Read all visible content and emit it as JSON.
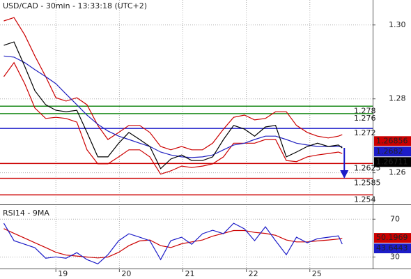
{
  "chart_data": {
    "type": "line",
    "title": "USD/CAD - 30min - 13:33:18 (UTC+2)",
    "x": [
      -0.82,
      -0.66,
      -0.49,
      -0.33,
      -0.16,
      0,
      0.16,
      0.33,
      0.49,
      0.66,
      0.82,
      0.99,
      1.15,
      1.32,
      1.48,
      1.65,
      1.81,
      1.98,
      2.14,
      2.31,
      2.47,
      2.64,
      2.8,
      2.97,
      3.13,
      3.3,
      3.46,
      3.63,
      3.79,
      3.96,
      4.12,
      4.29,
      4.45,
      4.51
    ],
    "xlim": [
      -0.88,
      4.99
    ],
    "xticks": [
      {
        "value": 0,
        "label": "19"
      },
      {
        "value": 1,
        "label": "20"
      },
      {
        "value": 2,
        "label": "21"
      },
      {
        "value": 3,
        "label": "22"
      },
      {
        "value": 4,
        "label": "25"
      }
    ],
    "ylim": [
      1.252,
      1.306
    ],
    "yticks": [
      1.26,
      1.28,
      {
        "value": 1.3,
        "label": "1.30"
      }
    ],
    "grid": true,
    "series": [
      {
        "color": "#cc0000",
        "values": [
          1.3011,
          1.302,
          1.2973,
          1.2916,
          1.286,
          1.2803,
          1.2794,
          1.2803,
          1.2784,
          1.2728,
          1.269,
          1.2709,
          1.2728,
          1.2728,
          1.2709,
          1.2671,
          1.2662,
          1.2671,
          1.2662,
          1.2662,
          1.268,
          1.2718,
          1.275,
          1.2756,
          1.2743,
          1.2747,
          1.2765,
          1.2765,
          1.2728,
          1.2709,
          1.2699,
          1.2694,
          1.2699,
          1.2703
        ]
      },
      {
        "color": "#cc0000",
        "values": [
          1.286,
          1.2898,
          1.2841,
          1.2775,
          1.2747,
          1.275,
          1.2747,
          1.2737,
          1.2662,
          1.2624,
          1.2624,
          1.2643,
          1.2662,
          1.2662,
          1.2643,
          1.2596,
          1.2605,
          1.2618,
          1.2614,
          1.2618,
          1.2624,
          1.2643,
          1.268,
          1.268,
          1.268,
          1.269,
          1.269,
          1.2633,
          1.263,
          1.2643,
          1.2648,
          1.2652,
          1.2656,
          1.2652
        ]
      },
      {
        "color": "#2020c0",
        "values": [
          1.2916,
          1.2913,
          1.2898,
          1.2879,
          1.286,
          1.2841,
          1.2813,
          1.2784,
          1.2756,
          1.2731,
          1.2713,
          1.2699,
          1.269,
          1.268,
          1.2671,
          1.2656,
          1.2648,
          1.2643,
          1.2641,
          1.2643,
          1.2648,
          1.2662,
          1.2675,
          1.268,
          1.269,
          1.2699,
          1.2699,
          1.269,
          1.268,
          1.2675,
          1.2671,
          1.2671,
          1.2671,
          1.2671
        ]
      },
      {
        "color": "#000000",
        "values": [
          1.2945,
          1.2954,
          1.2888,
          1.2822,
          1.2784,
          1.2769,
          1.2765,
          1.2769,
          1.2709,
          1.2643,
          1.2643,
          1.268,
          1.2709,
          1.269,
          1.2671,
          1.2611,
          1.2637,
          1.2648,
          1.2633,
          1.2633,
          1.2643,
          1.269,
          1.2728,
          1.2718,
          1.2699,
          1.2724,
          1.2728,
          1.2643,
          1.2656,
          1.2671,
          1.268,
          1.2671,
          1.2675,
          1.2667
        ]
      }
    ],
    "levels": [
      {
        "value": 1.278,
        "color": "#1a8a1a"
      },
      {
        "value": 1.276,
        "color": "#1a8a1a"
      },
      {
        "value": 1.272,
        "color": "#1c1cc8"
      },
      {
        "value": 1.2625,
        "color": "#cc0000"
      },
      {
        "value": 1.2585,
        "color": "#cc0000"
      },
      {
        "value": 1.254,
        "color": "#cc0000"
      }
    ],
    "price_labels": [
      {
        "value": 1.26856,
        "color": "#cc0000"
      },
      {
        "value": 1.2682,
        "color": "#1c1cc8"
      },
      {
        "value": 1.26711,
        "color": "#000000"
      }
    ],
    "indicator": {
      "title": "RSI14 - 9MA",
      "ylim": [
        20,
        82
      ],
      "yticks": [
        30,
        70
      ],
      "series": [
        {
          "color": "#cc0000",
          "values": [
            60,
            55,
            50,
            45,
            40,
            35,
            32,
            31,
            30,
            29,
            30,
            35,
            42,
            47,
            48,
            42,
            40,
            44,
            46,
            48,
            52,
            55,
            58,
            58,
            56,
            55,
            53,
            48,
            46,
            46,
            47,
            48,
            49,
            50
          ]
        },
        {
          "color": "#1c1cc8",
          "values": [
            65.7,
            47.2,
            43.5,
            39.8,
            28.7,
            30.1,
            28.7,
            34.6,
            27.2,
            22.7,
            32.4,
            47.2,
            54.6,
            50.9,
            47.2,
            27.2,
            47.2,
            50.9,
            43.5,
            54.6,
            58.3,
            54.6,
            65.7,
            59.8,
            47.2,
            62.0,
            47.2,
            32.4,
            50.9,
            45.0,
            49.4,
            50.9,
            52.4,
            43.6
          ]
        }
      ],
      "value_labels": [
        {
          "value": 50.1969,
          "color": "#cc0000"
        },
        {
          "value": 43.6443,
          "color": "#1c1cc8"
        }
      ]
    }
  }
}
